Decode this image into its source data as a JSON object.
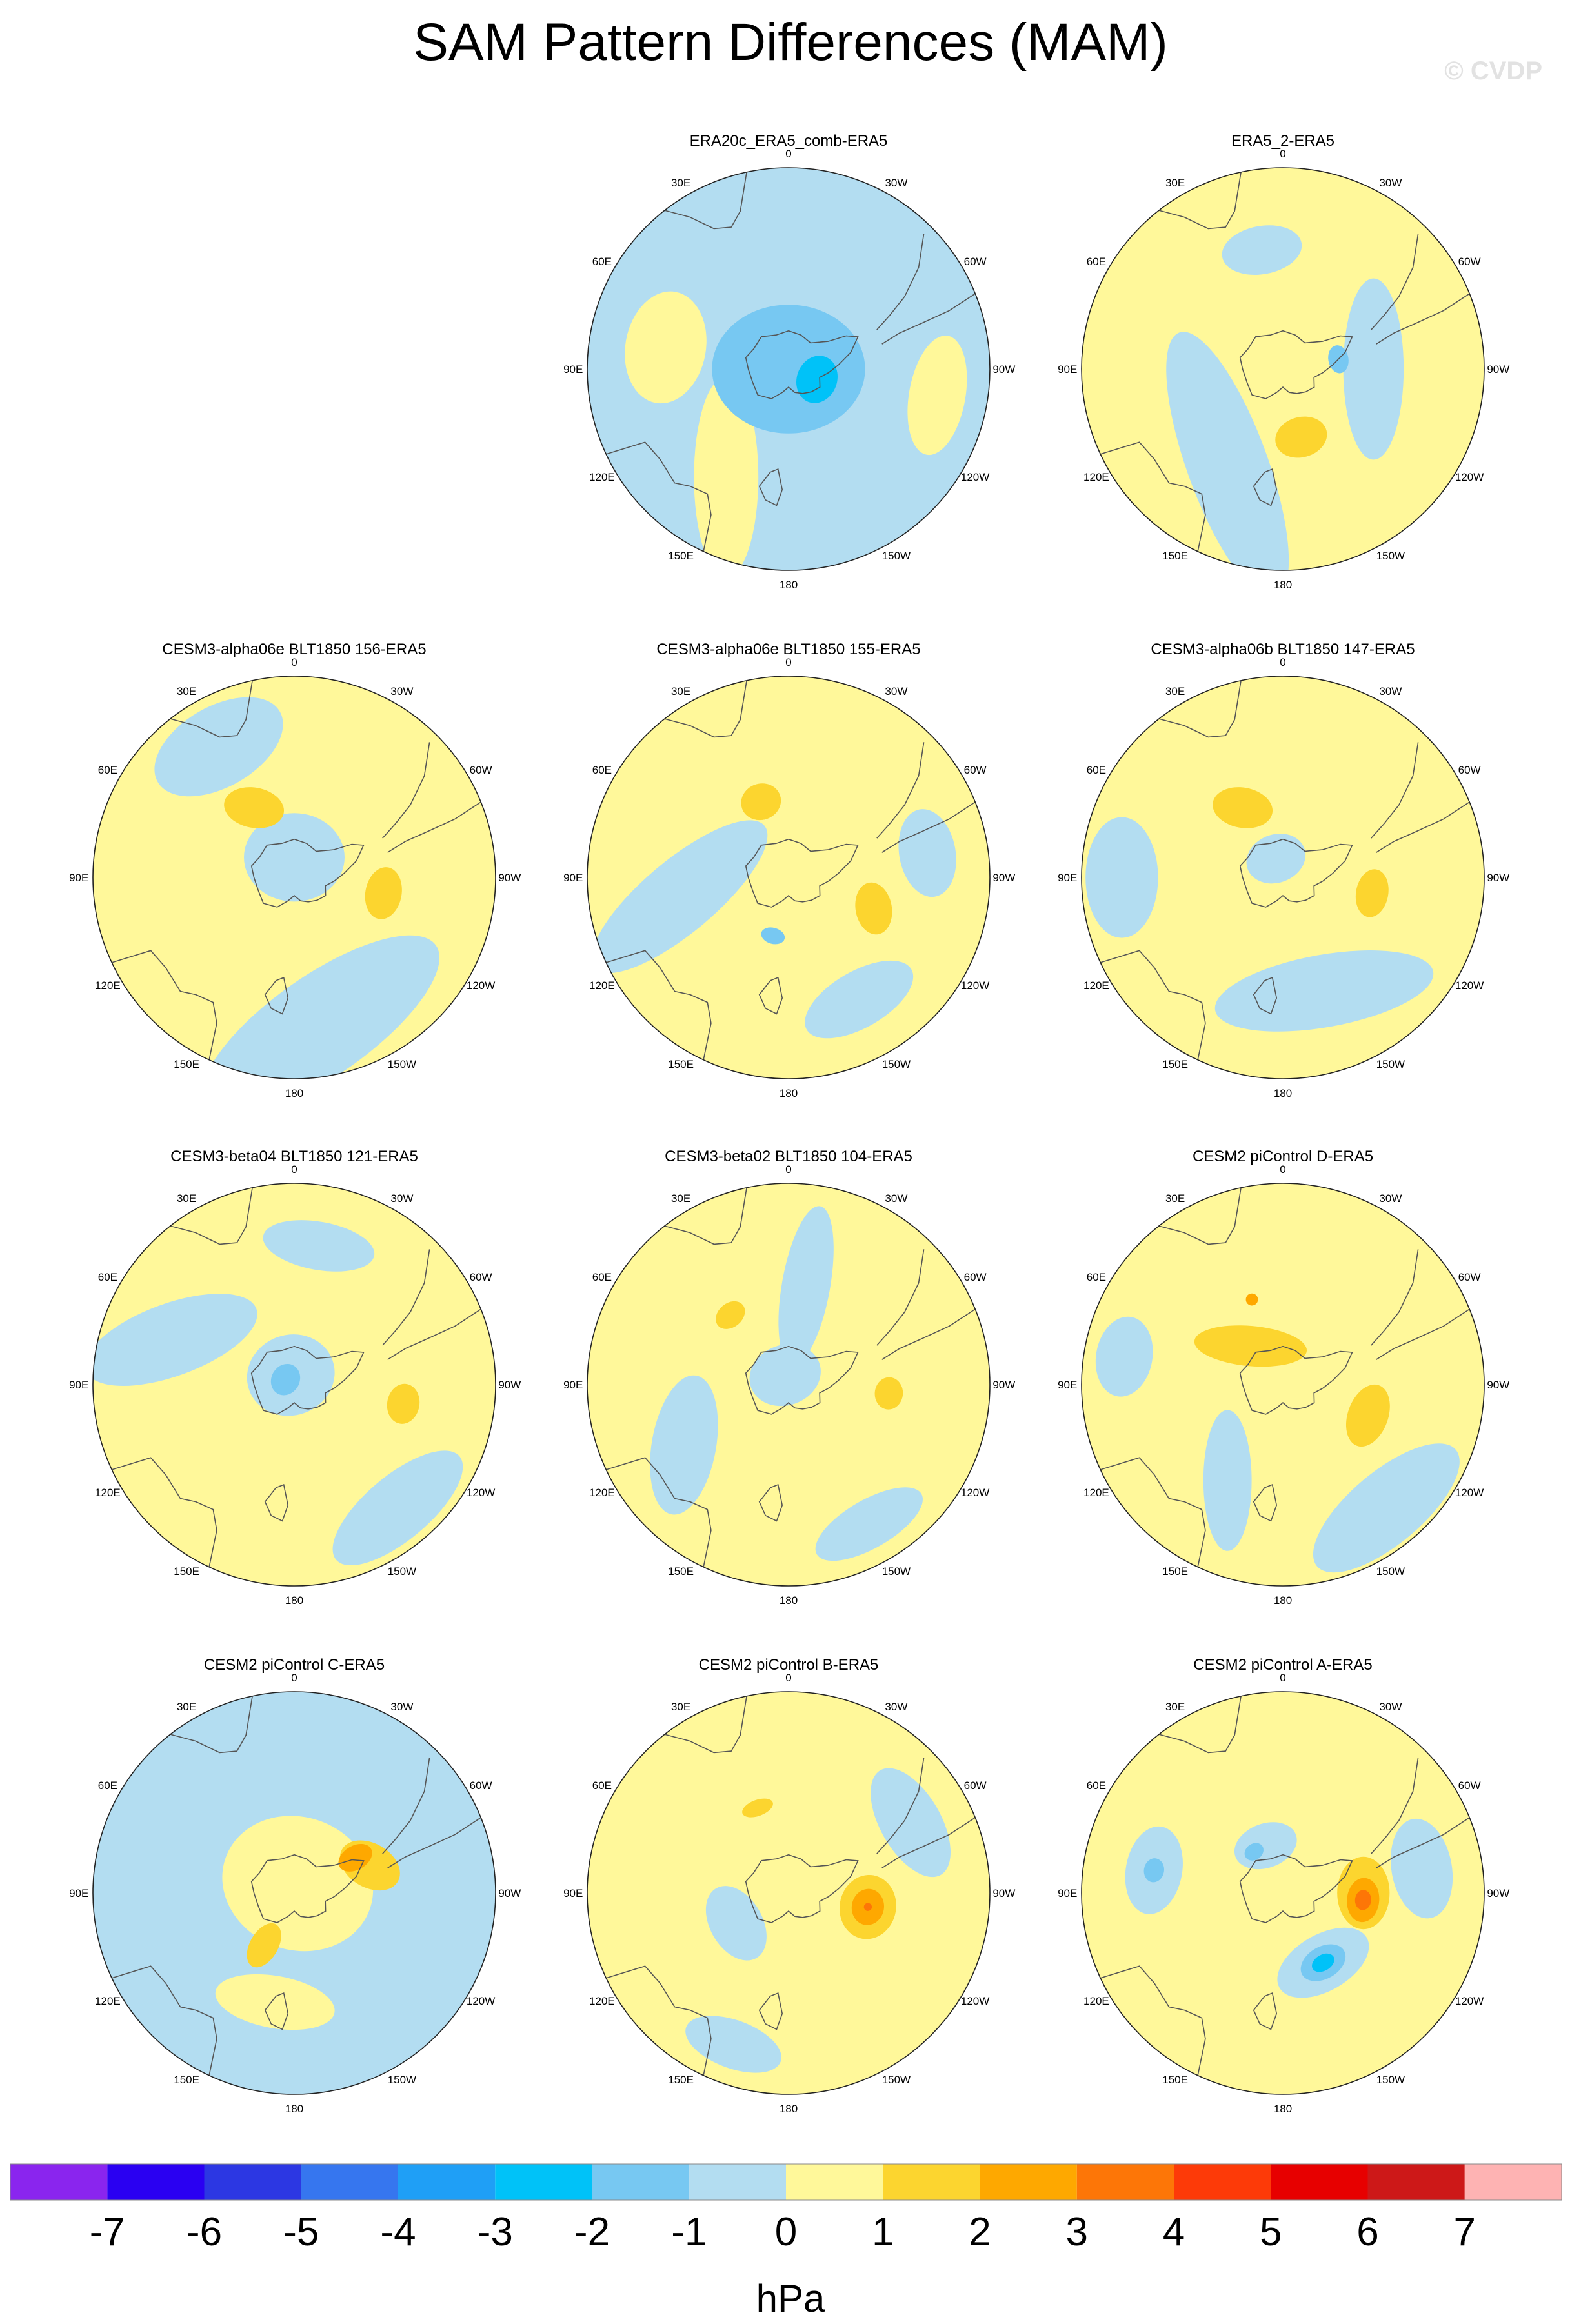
{
  "title": "SAM Pattern Differences (MAM)",
  "watermark": "© CVDP",
  "longitude_labels": [
    "0",
    "30E",
    "60E",
    "90E",
    "120E",
    "150E",
    "180",
    "150W",
    "120W",
    "90W",
    "60W",
    "30W"
  ],
  "colors": {
    "ocean_blue": "#b3ddf1",
    "land_line": "#555555"
  },
  "chart_data": {
    "type": "heatmap",
    "projection": "polar stereographic (Southern Hemisphere)",
    "variable": "sea level pressure pattern difference",
    "units": "hPa",
    "panels": [
      {
        "title": "ERA20c_ERA5_comb-ERA5",
        "background": "-1",
        "features": [
          {
            "lon": 150,
            "r": 0.62,
            "rx": 0.5,
            "ry": 0.16,
            "rot": 60,
            "level": "1"
          },
          {
            "lon": 80,
            "r": 0.62,
            "rx": 0.28,
            "ry": 0.2,
            "rot": 0,
            "level": "1"
          },
          {
            "lon": -100,
            "r": 0.75,
            "rx": 0.3,
            "ry": 0.14,
            "rot": 0,
            "level": "1"
          },
          {
            "lon": 0,
            "r": 0.0,
            "rx": 0.38,
            "ry": 0.32,
            "rot": 0,
            "level": "-2"
          },
          {
            "lon": -110,
            "r": 0.15,
            "rx": 0.12,
            "ry": 0.1,
            "rot": 0,
            "level": "-3"
          }
        ]
      },
      {
        "title": "ERA5_2-ERA5",
        "background": "1",
        "features": [
          {
            "lon": 150,
            "r": 0.55,
            "rx": 0.7,
            "ry": 0.2,
            "rot": 40,
            "level": "-1"
          },
          {
            "lon": -90,
            "r": 0.45,
            "rx": 0.45,
            "ry": 0.15,
            "rot": 0,
            "level": "-1"
          },
          {
            "lon": 10,
            "r": 0.6,
            "rx": 0.2,
            "ry": 0.12,
            "rot": 0,
            "level": "-1"
          },
          {
            "lon": -165,
            "r": 0.35,
            "rx": 0.13,
            "ry": 0.1,
            "rot": 0,
            "level": "2"
          },
          {
            "lon": -80,
            "r": 0.28,
            "rx": 0.07,
            "ry": 0.05,
            "rot": 0,
            "level": "-2"
          }
        ]
      },
      {
        "title": "CESM3-alpha06e BLT1850 156-ERA5",
        "background": "1",
        "features": [
          {
            "lon": -170,
            "r": 0.75,
            "rx": 0.7,
            "ry": 0.25,
            "rot": -25,
            "level": "-1"
          },
          {
            "lon": 30,
            "r": 0.75,
            "rx": 0.35,
            "ry": 0.2,
            "rot": 0,
            "level": "-1"
          },
          {
            "lon": 0,
            "r": 0.1,
            "rx": 0.25,
            "ry": 0.22,
            "rot": 0,
            "level": "-1"
          },
          {
            "lon": 30,
            "r": 0.4,
            "rx": 0.15,
            "ry": 0.1,
            "rot": 40,
            "level": "2"
          },
          {
            "lon": -100,
            "r": 0.45,
            "rx": 0.13,
            "ry": 0.09,
            "rot": 0,
            "level": "2"
          }
        ]
      },
      {
        "title": "CESM3-alpha06e BLT1850 155-ERA5",
        "background": "1",
        "features": [
          {
            "lon": 100,
            "r": 0.55,
            "rx": 0.55,
            "ry": 0.18,
            "rot": 60,
            "level": "-1"
          },
          {
            "lon": -80,
            "r": 0.7,
            "rx": 0.22,
            "ry": 0.14,
            "rot": 0,
            "level": "-1"
          },
          {
            "lon": -150,
            "r": 0.7,
            "rx": 0.3,
            "ry": 0.14,
            "rot": 0,
            "level": "-1"
          },
          {
            "lon": 20,
            "r": 0.4,
            "rx": 0.1,
            "ry": 0.09,
            "rot": 0,
            "level": "2"
          },
          {
            "lon": -110,
            "r": 0.45,
            "rx": 0.13,
            "ry": 0.09,
            "rot": -30,
            "level": "2"
          },
          {
            "lon": 165,
            "r": 0.3,
            "rx": 0.06,
            "ry": 0.04,
            "rot": 0,
            "level": "-2"
          }
        ]
      },
      {
        "title": "CESM3-alpha06b BLT1850 147-ERA5",
        "background": "1",
        "features": [
          {
            "lon": -160,
            "r": 0.6,
            "rx": 0.55,
            "ry": 0.18,
            "rot": 10,
            "level": "-1"
          },
          {
            "lon": 90,
            "r": 0.8,
            "rx": 0.3,
            "ry": 0.18,
            "rot": 0,
            "level": "-1"
          },
          {
            "lon": 20,
            "r": 0.1,
            "rx": 0.15,
            "ry": 0.12,
            "rot": 0,
            "level": "-1"
          },
          {
            "lon": 30,
            "r": 0.4,
            "rx": 0.15,
            "ry": 0.1,
            "rot": 40,
            "level": "2"
          },
          {
            "lon": -100,
            "r": 0.45,
            "rx": 0.12,
            "ry": 0.08,
            "rot": 0,
            "level": "2"
          }
        ]
      },
      {
        "title": "CESM3-beta04 BLT1850 121-ERA5",
        "background": "1",
        "features": [
          {
            "lon": 70,
            "r": 0.65,
            "rx": 0.45,
            "ry": 0.18,
            "rot": 50,
            "level": "-1"
          },
          {
            "lon": -140,
            "r": 0.8,
            "rx": 0.4,
            "ry": 0.16,
            "rot": 0,
            "level": "-1"
          },
          {
            "lon": -10,
            "r": 0.7,
            "rx": 0.28,
            "ry": 0.12,
            "rot": 0,
            "level": "-1"
          },
          {
            "lon": 20,
            "r": 0.05,
            "rx": 0.22,
            "ry": 0.2,
            "rot": 0,
            "level": "-1"
          },
          {
            "lon": 60,
            "r": 0.05,
            "rx": 0.08,
            "ry": 0.07,
            "rot": 0,
            "level": "-2"
          },
          {
            "lon": -100,
            "r": 0.55,
            "rx": 0.1,
            "ry": 0.08,
            "rot": 0,
            "level": "2"
          }
        ]
      },
      {
        "title": "CESM3-beta02 BLT1850 104-ERA5",
        "background": "1",
        "features": [
          {
            "lon": -10,
            "r": 0.5,
            "rx": 0.12,
            "ry": 0.4,
            "rot": 0,
            "level": "-1"
          },
          {
            "lon": 120,
            "r": 0.6,
            "rx": 0.35,
            "ry": 0.16,
            "rot": 40,
            "level": "-1"
          },
          {
            "lon": -150,
            "r": 0.8,
            "rx": 0.3,
            "ry": 0.12,
            "rot": 0,
            "level": "-1"
          },
          {
            "lon": 20,
            "r": 0.05,
            "rx": 0.18,
            "ry": 0.15,
            "rot": 0,
            "level": "-1"
          },
          {
            "lon": 40,
            "r": 0.45,
            "rx": 0.08,
            "ry": 0.06,
            "rot": 0,
            "level": "2"
          },
          {
            "lon": -95,
            "r": 0.5,
            "rx": 0.08,
            "ry": 0.07,
            "rot": 0,
            "level": "2"
          }
        ]
      },
      {
        "title": "CESM2 piControl D-ERA5",
        "background": "1",
        "features": [
          {
            "lon": -140,
            "r": 0.8,
            "rx": 0.45,
            "ry": 0.18,
            "rot": 0,
            "level": "-1"
          },
          {
            "lon": 150,
            "r": 0.55,
            "rx": 0.35,
            "ry": 0.12,
            "rot": 60,
            "level": "-1"
          },
          {
            "lon": 80,
            "r": 0.8,
            "rx": 0.2,
            "ry": 0.14,
            "rot": 0,
            "level": "-1"
          },
          {
            "lon": 40,
            "r": 0.25,
            "rx": 0.28,
            "ry": 0.1,
            "rot": 45,
            "level": "2"
          },
          {
            "lon": -110,
            "r": 0.45,
            "rx": 0.16,
            "ry": 0.1,
            "rot": 0,
            "level": "2"
          },
          {
            "lon": 20,
            "r": 0.45,
            "rx": 0.03,
            "ry": 0.03,
            "rot": 0,
            "level": "3"
          }
        ]
      },
      {
        "title": "CESM2 piControl C-ERA5",
        "background": "-1",
        "features": [
          {
            "lon": -20,
            "r": 0.05,
            "rx": 0.38,
            "ry": 0.33,
            "rot": 0,
            "level": "1"
          },
          {
            "lon": 170,
            "r": 0.55,
            "rx": 0.3,
            "ry": 0.13,
            "rot": 0,
            "level": "1"
          },
          {
            "lon": -70,
            "r": 0.4,
            "rx": 0.16,
            "ry": 0.11,
            "rot": -40,
            "level": "2"
          },
          {
            "lon": 150,
            "r": 0.3,
            "rx": 0.07,
            "ry": 0.12,
            "rot": 0,
            "level": "2"
          },
          {
            "lon": -60,
            "r": 0.35,
            "rx": 0.06,
            "ry": 0.09,
            "rot": 0,
            "level": "3"
          }
        ]
      },
      {
        "title": "CESM2 piControl B-ERA5",
        "background": "1",
        "features": [
          {
            "lon": -60,
            "r": 0.7,
            "rx": 0.3,
            "ry": 0.15,
            "rot": 0,
            "level": "-1"
          },
          {
            "lon": 120,
            "r": 0.3,
            "rx": 0.2,
            "ry": 0.13,
            "rot": 0,
            "level": "-1"
          },
          {
            "lon": 160,
            "r": 0.8,
            "rx": 0.25,
            "ry": 0.12,
            "rot": 0,
            "level": "-1"
          },
          {
            "lon": -100,
            "r": 0.4,
            "rx": 0.16,
            "ry": 0.14,
            "rot": 0,
            "level": "2"
          },
          {
            "lon": -100,
            "r": 0.4,
            "rx": 0.09,
            "ry": 0.08,
            "rot": 0,
            "level": "3"
          },
          {
            "lon": -100,
            "r": 0.4,
            "rx": 0.02,
            "ry": 0.02,
            "rot": 0,
            "level": "4"
          },
          {
            "lon": 20,
            "r": 0.45,
            "rx": 0.08,
            "ry": 0.04,
            "rot": 0,
            "level": "2"
          }
        ]
      },
      {
        "title": "CESM2 piControl A-ERA5",
        "background": "1",
        "features": [
          {
            "lon": 80,
            "r": 0.65,
            "rx": 0.22,
            "ry": 0.14,
            "rot": 0,
            "level": "-1"
          },
          {
            "lon": 20,
            "r": 0.25,
            "rx": 0.16,
            "ry": 0.11,
            "rot": 0,
            "level": "-1"
          },
          {
            "lon": -150,
            "r": 0.4,
            "rx": 0.25,
            "ry": 0.14,
            "rot": 0,
            "level": "-1"
          },
          {
            "lon": -80,
            "r": 0.7,
            "rx": 0.25,
            "ry": 0.15,
            "rot": 0,
            "level": "-1"
          },
          {
            "lon": -90,
            "r": 0.4,
            "rx": 0.18,
            "ry": 0.13,
            "rot": 0,
            "level": "2"
          },
          {
            "lon": -95,
            "r": 0.4,
            "rx": 0.11,
            "ry": 0.08,
            "rot": 0,
            "level": "3"
          },
          {
            "lon": -95,
            "r": 0.4,
            "rx": 0.05,
            "ry": 0.04,
            "rot": 0,
            "level": "4"
          },
          {
            "lon": -150,
            "r": 0.4,
            "rx": 0.12,
            "ry": 0.08,
            "rot": 0,
            "level": "-2"
          },
          {
            "lon": -150,
            "r": 0.4,
            "rx": 0.06,
            "ry": 0.04,
            "rot": 0,
            "level": "-3"
          },
          {
            "lon": 80,
            "r": 0.65,
            "rx": 0.06,
            "ry": 0.05,
            "rot": 0,
            "level": "-2"
          },
          {
            "lon": 35,
            "r": 0.25,
            "rx": 0.05,
            "ry": 0.04,
            "rot": 0,
            "level": "-2"
          }
        ]
      }
    ],
    "colorbar": {
      "labels": [
        "-7",
        "-6",
        "-5",
        "-4",
        "-3",
        "-2",
        "-1",
        "0",
        "1",
        "2",
        "3",
        "4",
        "5",
        "6",
        "7"
      ],
      "colors": [
        "#8a25ee",
        "#2a00f2",
        "#2c37e3",
        "#3676ef",
        "#1f9ff6",
        "#00c2f8",
        "#77c8f2",
        "#b3ddf1",
        "#fff89a",
        "#fcd52f",
        "#fea800",
        "#fd7607",
        "#fd3a08",
        "#e70000",
        "#cd1818",
        "#feb3b3"
      ],
      "units": "hPa"
    }
  }
}
